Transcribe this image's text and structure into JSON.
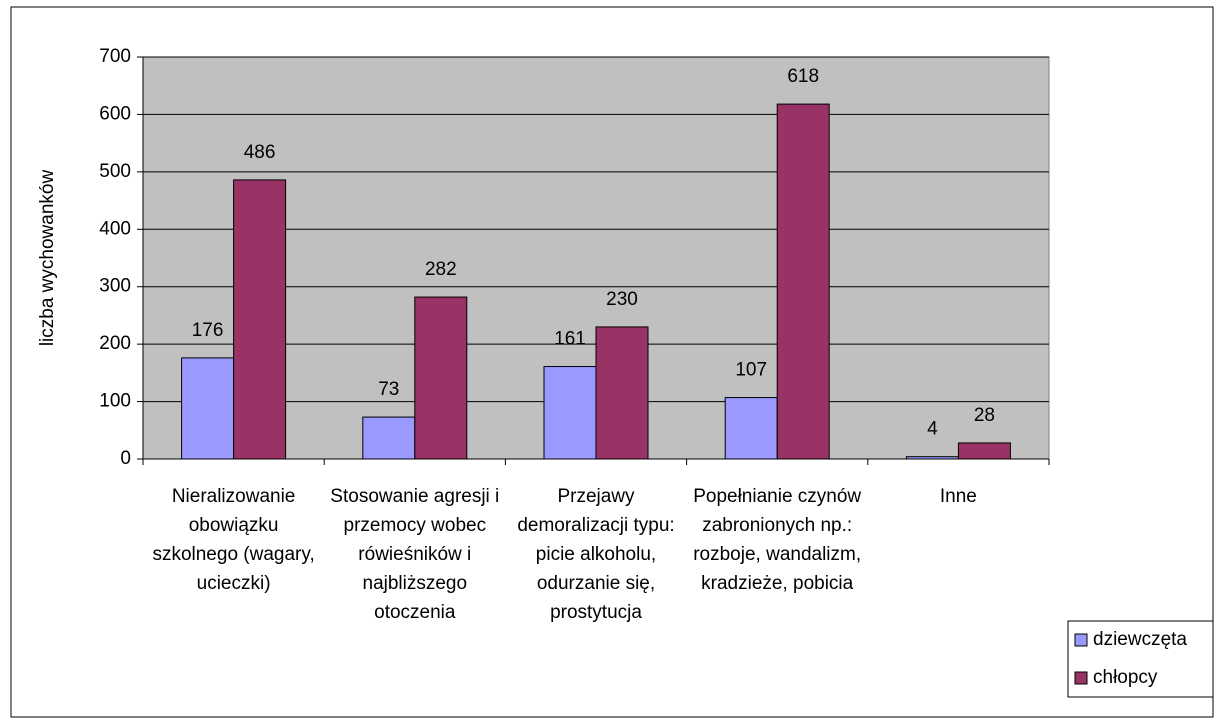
{
  "chart_data": {
    "type": "bar",
    "y_label": "liczba wychowanków",
    "categories": [
      "Nieralizowanie obowiązku szkolnego (wagary, ucieczki)",
      "Stosowanie agresji i przemocy wobec rówieśników i najbliższego otoczenia",
      "Przejawy demoralizacji typu: picie alkoholu, odurzanie się, prostytucja",
      "Popełnianie czynów zabronionych np.: rozboje, wandalizm, kradzieże, pobicia",
      "Inne"
    ],
    "series": [
      {
        "name": "dziewczęta",
        "color": "#9999ff",
        "values": [
          176,
          73,
          161,
          107,
          4
        ]
      },
      {
        "name": "chłopcy",
        "color": "#993366",
        "values": [
          486,
          282,
          230,
          618,
          28
        ]
      }
    ],
    "ylim": [
      0,
      700
    ],
    "yticks": [
      0,
      100,
      200,
      300,
      400,
      500,
      600,
      700
    ],
    "grid": true,
    "legend": "right",
    "plot_background": "#c0c0c0"
  }
}
